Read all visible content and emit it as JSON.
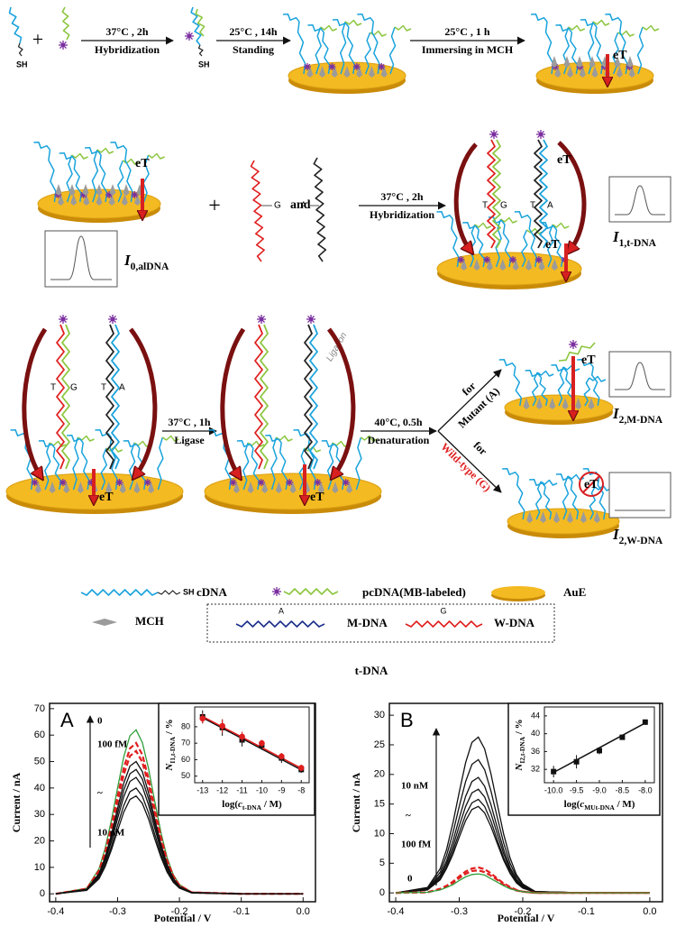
{
  "scheme": {
    "steps": [
      {
        "top": "37°C , 2h",
        "bottom": "Hybridization"
      },
      {
        "top": "25°C , 14h",
        "bottom": "Standing"
      },
      {
        "top": "25°C , 1 h",
        "bottom": "Immersing in MCH"
      },
      {
        "top": "37°C , 2h",
        "bottom": "Hybridization"
      },
      {
        "top": "37°C , 1h",
        "bottom": "Ligase"
      },
      {
        "top": "40°C, 0.5h",
        "bottom": "Denaturation"
      }
    ],
    "sh": "SH",
    "plus": "+",
    "and": "and",
    "et": "eT",
    "base_g": "G",
    "base_a": "A",
    "base_t": "T",
    "ligation": "Ligation",
    "branches": [
      {
        "prefix": "for",
        "target": "Mutant (A)"
      },
      {
        "prefix": "for",
        "target": "Wild-type (G)"
      }
    ],
    "currents": [
      {
        "parts": [
          {
            "t": "I",
            "italic": true
          },
          {
            "t": "0,alDNA",
            "sub": true
          }
        ]
      },
      {
        "parts": [
          {
            "t": "I",
            "italic": true
          },
          {
            "t": "1,t-DNA",
            "sub": true
          }
        ]
      },
      {
        "parts": [
          {
            "t": "I",
            "italic": true
          },
          {
            "t": "2,M-DNA",
            "sub": true
          }
        ]
      },
      {
        "parts": [
          {
            "t": "I",
            "italic": true
          },
          {
            "t": "2,W-DNA",
            "sub": true
          }
        ]
      }
    ]
  },
  "legend": {
    "items": [
      "cDNA",
      "pcDNA(MB-labeled)",
      "AuE",
      "MCH",
      "M-DNA",
      "W-DNA"
    ],
    "sh": "SH",
    "m_base": "A",
    "w_base": "G",
    "group_label": "t-DNA"
  },
  "chart_data": [
    {
      "type": "line",
      "panel_label": "A",
      "xlabel": "Potential / V",
      "ylabel": "Current / nA",
      "annotations": [
        "0",
        "100 fM",
        "~",
        "10 nM"
      ],
      "x": [
        -0.4,
        -0.35,
        -0.33,
        -0.32,
        -0.31,
        -0.3,
        -0.29,
        -0.28,
        -0.27,
        -0.26,
        -0.25,
        -0.24,
        -0.23,
        -0.22,
        -0.21,
        -0.2,
        -0.18,
        -0.1,
        0
      ],
      "xlim": [
        -0.41,
        0.02
      ],
      "xticks": [
        -0.4,
        -0.3,
        -0.2,
        -0.1,
        {
          "value": 0,
          "label": "0.0"
        }
      ],
      "ylim": [
        -3,
        72
      ],
      "yticks": [
        0,
        10,
        20,
        30,
        40,
        50,
        60,
        70
      ],
      "series": [
        {
          "color": "#2e9e3a",
          "dash": false,
          "values": [
            0,
            2.1,
            9.5,
            17.2,
            27.8,
            40.1,
            51.8,
            59.8,
            62,
            57.2,
            47.4,
            35.1,
            23.3,
            13.8,
            7.3,
            3.5,
            0.6,
            0,
            0
          ]
        },
        {
          "color": "#e01e1e",
          "dash": true,
          "values": [
            0,
            1.9,
            8.8,
            15.8,
            25.5,
            36.9,
            47.6,
            55,
            57,
            52.6,
            43.5,
            32.3,
            21.4,
            12.7,
            6.7,
            3.2,
            0.5,
            0,
            0
          ]
        },
        {
          "color": "#e01e1e",
          "dash": true,
          "values": [
            0,
            1.8,
            8.3,
            15,
            24.2,
            34.9,
            45.1,
            52.1,
            54,
            49.8,
            41.3,
            30.6,
            20.3,
            12,
            6.4,
            3,
            0.5,
            0,
            0
          ]
        },
        {
          "color": "#111111",
          "dash": false,
          "values": [
            0,
            1.7,
            7.7,
            13.9,
            22.4,
            32.4,
            41.8,
            48.3,
            50,
            46.2,
            38.2,
            28.3,
            18.8,
            11.2,
            5.9,
            2.8,
            0.5,
            0,
            0
          ]
        },
        {
          "color": "#111111",
          "dash": false,
          "values": [
            0,
            1.6,
            7.2,
            13.1,
            21.1,
            30.4,
            39.2,
            45.4,
            47,
            43.4,
            35.9,
            26.6,
            17.6,
            10.5,
            5.5,
            2.6,
            0.4,
            0,
            0
          ]
        },
        {
          "color": "#111111",
          "dash": false,
          "values": [
            0,
            1.5,
            6.8,
            12.2,
            19.7,
            28.5,
            36.7,
            42.5,
            44,
            40.6,
            33.6,
            24.9,
            16.5,
            9.8,
            5.2,
            2.5,
            0.4,
            0,
            0
          ]
        },
        {
          "color": "#111111",
          "dash": false,
          "values": [
            0,
            1.4,
            6.2,
            11.1,
            17.9,
            25.9,
            33.4,
            38.6,
            40,
            36.9,
            30.6,
            22.6,
            15,
            8.9,
            4.7,
            2.2,
            0.4,
            0,
            0
          ]
        },
        {
          "color": "#111111",
          "dash": false,
          "values": [
            0,
            1.3,
            5.7,
            10.3,
            16.6,
            23.9,
            30.9,
            35.7,
            37,
            34.2,
            28.3,
            20.9,
            13.9,
            8.3,
            4.4,
            2.1,
            0.3,
            0,
            0
          ]
        }
      ],
      "inset": {
        "type": "scatter",
        "xlabel": [
          {
            "t": "log("
          },
          {
            "t": "c",
            "italic": true
          },
          {
            "t": "t-DNA",
            "sub": true
          },
          {
            "t": " / M)"
          }
        ],
        "ylabel": [
          {
            "t": "N",
            "italic": true
          },
          {
            "t": "I1,t-DNA",
            "sub": true
          },
          {
            "t": " / %"
          }
        ],
        "xlim": [
          -13.4,
          -7.6
        ],
        "xticks": [
          -13,
          -12,
          -11,
          -10,
          -9,
          -8
        ],
        "ylim": [
          46,
          92
        ],
        "yticks": [
          50,
          60,
          70,
          80
        ],
        "fits": [
          {
            "color": "#111111",
            "x": [
              -13,
              -8
            ],
            "values": [
              85.5,
              53.8
            ]
          },
          {
            "color": "#e01e1e",
            "x": [
              -13,
              -8
            ],
            "values": [
              86.2,
              54.8
            ]
          }
        ],
        "series": [
          {
            "color": "#111111",
            "marker": "square",
            "x": [
              -13,
              -12,
              -11,
              -10,
              -9,
              -8
            ],
            "values": [
              86,
              79.5,
              72,
              69,
              61,
              54
            ],
            "errors": [
              4,
              5,
              4,
              3,
              3,
              2
            ]
          },
          {
            "color": "#e01e1e",
            "marker": "circle",
            "x": [
              -13,
              -12,
              -11,
              -10,
              -9,
              -8
            ],
            "values": [
              85,
              80.5,
              74,
              70,
              62,
              55
            ],
            "errors": [
              3,
              4,
              3,
              2,
              2,
              2
            ]
          }
        ]
      }
    },
    {
      "type": "line",
      "panel_label": "B",
      "xlabel": "Potential / V",
      "ylabel": "Current / nA",
      "annotations": [
        "10 nM",
        "~",
        "100 fM",
        "0"
      ],
      "x": [
        -0.4,
        -0.35,
        -0.33,
        -0.32,
        -0.31,
        -0.3,
        -0.29,
        -0.28,
        -0.27,
        -0.26,
        -0.25,
        -0.24,
        -0.23,
        -0.22,
        -0.21,
        -0.2,
        -0.18,
        -0.1,
        0
      ],
      "xlim": [
        -0.41,
        0.02
      ],
      "xticks": [
        -0.4,
        -0.3,
        -0.2,
        -0.1,
        {
          "value": 0,
          "label": "0.0"
        }
      ],
      "ylim": [
        -1.5,
        32
      ],
      "yticks": [
        0,
        5,
        10,
        15,
        20,
        25,
        30
      ],
      "series": [
        {
          "color": "#111111",
          "dash": false,
          "values": [
            0,
            0.9,
            4.1,
            7.3,
            11.8,
            17,
            22,
            25.4,
            26.3,
            24.3,
            20.1,
            14.9,
            9.9,
            5.9,
            3.1,
            1.5,
            0.2,
            0,
            0
          ]
        },
        {
          "color": "#111111",
          "dash": false,
          "values": [
            0,
            0.8,
            3.5,
            6.3,
            10.1,
            14.6,
            18.8,
            21.7,
            22.5,
            20.8,
            17.2,
            12.7,
            8.4,
            5,
            2.7,
            1.3,
            0.2,
            0,
            0
          ]
        },
        {
          "color": "#111111",
          "dash": false,
          "values": [
            0,
            0.7,
            3,
            5.4,
            8.7,
            12.6,
            16.3,
            18.8,
            19.5,
            18,
            14.9,
            11,
            7.3,
            4.3,
            2.3,
            1.1,
            0.2,
            0,
            0
          ]
        },
        {
          "color": "#111111",
          "dash": false,
          "values": [
            0,
            0.6,
            2.7,
            4.9,
            7.8,
            11.3,
            14.6,
            16.9,
            17.5,
            16.2,
            13.4,
            9.9,
            6.6,
            3.9,
            2.1,
            1,
            0.2,
            0,
            0
          ]
        },
        {
          "color": "#111111",
          "dash": false,
          "values": [
            0,
            0.5,
            2.4,
            4.4,
            7.1,
            10.2,
            13.2,
            15.2,
            15.8,
            14.6,
            12.1,
            8.9,
            5.9,
            3.5,
            1.9,
            0.9,
            0.1,
            0,
            0
          ]
        },
        {
          "color": "#111111",
          "dash": false,
          "values": [
            0,
            0.5,
            2.2,
            4.1,
            6.5,
            9.4,
            12.2,
            14.1,
            14.6,
            13.5,
            11.2,
            8.3,
            5.5,
            3.3,
            1.7,
            0.8,
            0.1,
            0,
            0
          ]
        },
        {
          "color": "#e01e1e",
          "dash": true,
          "values": [
            0,
            0.1,
            0.7,
            1.2,
            1.9,
            2.8,
            3.6,
            4.1,
            4.3,
            4,
            3.3,
            2.4,
            1.6,
            1,
            0.5,
            0.2,
            0,
            0,
            0
          ]
        },
        {
          "color": "#e01e1e",
          "dash": true,
          "values": [
            0,
            0.1,
            0.6,
            1.1,
            1.7,
            2.5,
            3.2,
            3.7,
            3.8,
            3.5,
            2.9,
            2.2,
            1.4,
            0.8,
            0.4,
            0.2,
            0,
            0,
            0
          ]
        },
        {
          "color": "#2e9e3a",
          "dash": false,
          "values": [
            0,
            0.1,
            0.5,
            0.9,
            1.4,
            2.1,
            2.7,
            3.1,
            3.2,
            3,
            2.4,
            1.8,
            1.2,
            0.7,
            0.4,
            0.2,
            0,
            0,
            0
          ]
        }
      ],
      "inset": {
        "type": "scatter",
        "xlabel": [
          {
            "t": "log("
          },
          {
            "t": "c",
            "italic": true
          },
          {
            "t": "MUt-DNA",
            "sub": true
          },
          {
            "t": " / M)"
          }
        ],
        "ylabel": [
          {
            "t": "N",
            "italic": true
          },
          {
            "t": "I2,t-DNA",
            "sub": true
          },
          {
            "t": " / %"
          }
        ],
        "xlim": [
          -10.2,
          -7.8
        ],
        "xticks": [
          {
            "value": -10,
            "label": "-10.0"
          },
          -9.5,
          {
            "value": -9,
            "label": "-9.0"
          },
          -8.5,
          {
            "value": -8,
            "label": "-8.0"
          }
        ],
        "ylim": [
          29,
          46
        ],
        "yticks": [
          32,
          36,
          40,
          44
        ],
        "fits": [
          {
            "color": "#111111",
            "x": [
              -10,
              -8
            ],
            "values": [
              31.3,
              42.4
            ]
          }
        ],
        "series": [
          {
            "color": "#111111",
            "marker": "square",
            "x": [
              -10,
              -9.5,
              -9,
              -8.5,
              -8
            ],
            "values": [
              31.5,
              33.7,
              36.2,
              39.2,
              42.6
            ],
            "errors": [
              1.3,
              1.5,
              0.8,
              0.4,
              0.6
            ]
          }
        ]
      }
    }
  ]
}
